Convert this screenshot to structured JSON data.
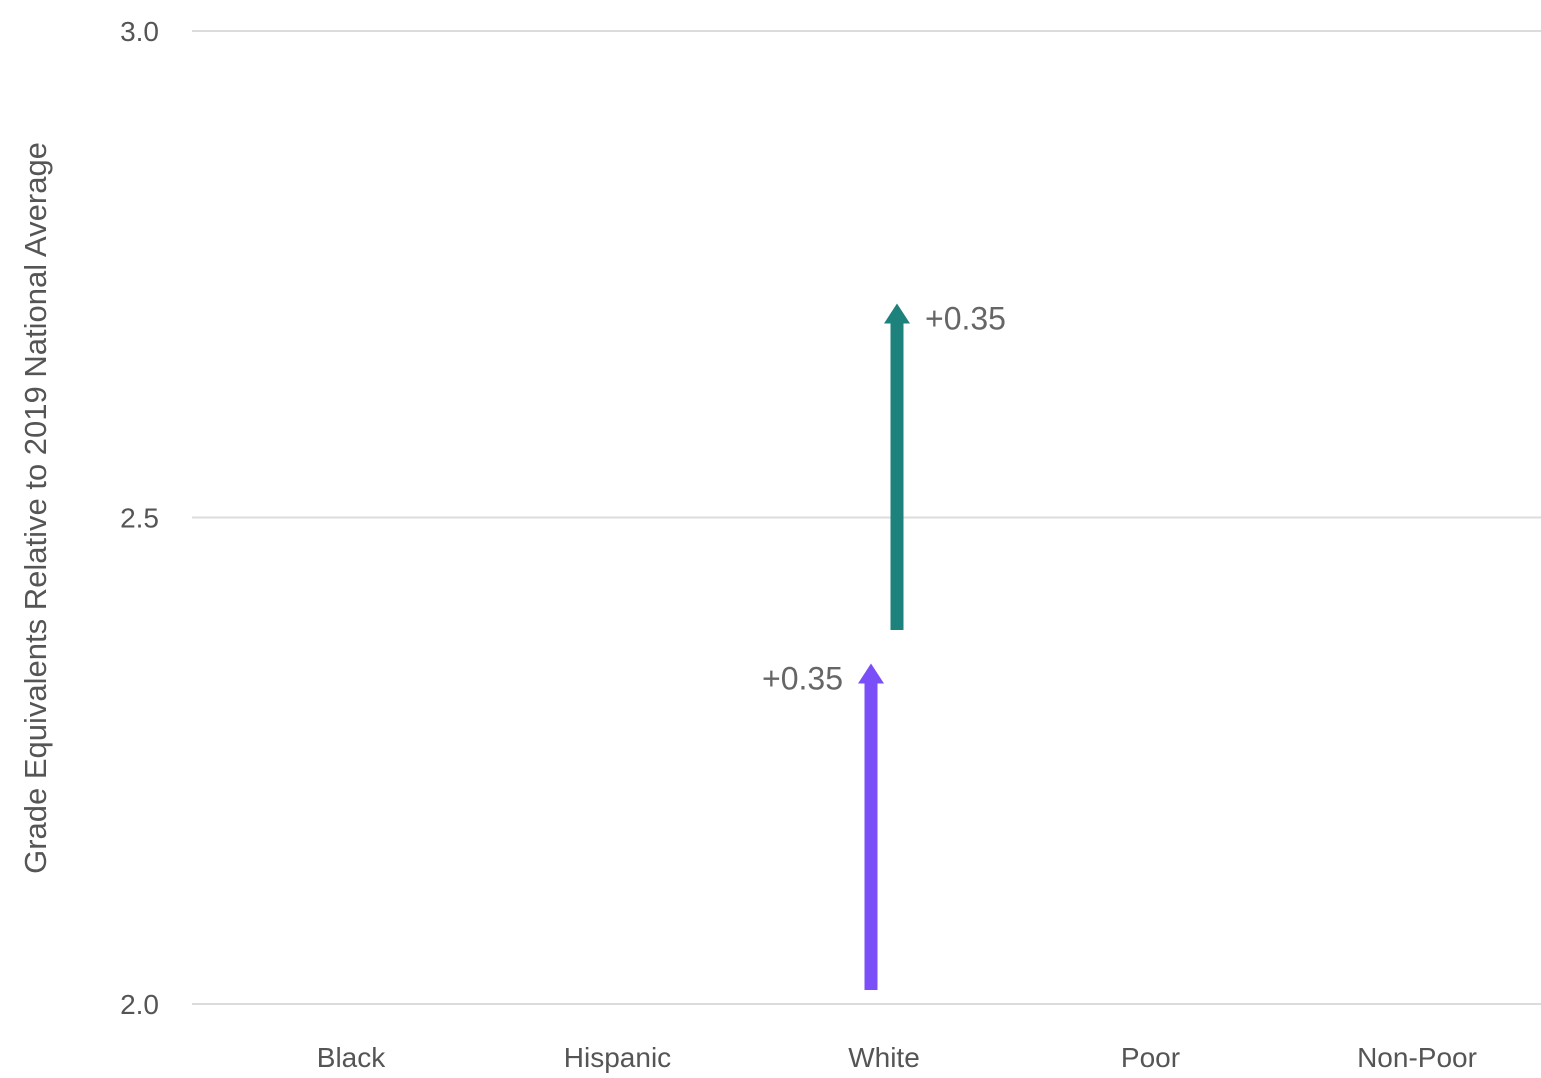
{
  "chart_data": {
    "type": "arrow",
    "title": "",
    "xlabel": "",
    "ylabel": "Grade Equivalents Relative to 2019 National Average",
    "ylim": [
      2.0,
      3.0
    ],
    "yticks": [
      "2.0",
      "2.5",
      "3.0"
    ],
    "ytick_values": [
      2.0,
      2.5,
      3.0
    ],
    "grid": true,
    "categories": [
      "Black",
      "Hispanic",
      "White",
      "Poor",
      "Non-Poor"
    ],
    "arrows": [
      {
        "category": "White",
        "start": 2.0,
        "end": 2.35,
        "label": "+0.35",
        "color": "#7b4ff7",
        "label_side": "left"
      },
      {
        "category": "White",
        "start": 2.37,
        "end": 2.72,
        "label": "+0.35",
        "color": "#1e827c",
        "label_side": "right"
      }
    ]
  }
}
